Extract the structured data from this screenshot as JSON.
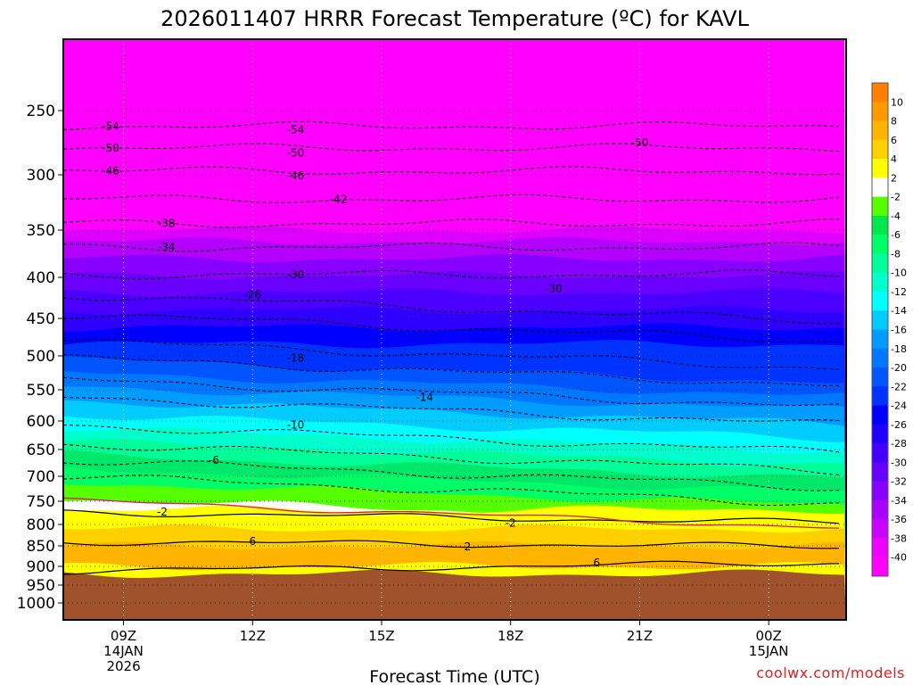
{
  "chart_data": {
    "type": "time-height contour",
    "title": "2026011407 HRRR Forecast Temperature (ºC) for KAVL",
    "xlabel": "Forecast Time (UTC)",
    "ylabel": "",
    "credit": "coolwx.com/models",
    "x_ticks": [
      {
        "hour": 9,
        "lines": [
          "09Z",
          "14JAN",
          "2026"
        ]
      },
      {
        "hour": 12,
        "lines": [
          "12Z"
        ]
      },
      {
        "hour": 15,
        "lines": [
          "15Z"
        ]
      },
      {
        "hour": 18,
        "lines": [
          "18Z"
        ]
      },
      {
        "hour": 21,
        "lines": [
          "21Z"
        ]
      },
      {
        "hour": 24,
        "lines": [
          "00Z",
          "15JAN"
        ]
      }
    ],
    "xlim_hours": [
      7.6,
      25.8
    ],
    "y_ticks": [
      "250",
      "300",
      "350",
      "400",
      "450",
      "500",
      "550",
      "600",
      "650",
      "700",
      "750",
      "800",
      "850",
      "900",
      "950",
      "1000"
    ],
    "ylim_hpa": [
      200,
      1013
    ],
    "colorbar_ticks": [
      "10",
      "8",
      "6",
      "4",
      "2",
      "-2",
      "-4",
      "-6",
      "-8",
      "-10",
      "-12",
      "-14",
      "-16",
      "-18",
      "-20",
      "-22",
      "-24",
      "-26",
      "-28",
      "-30",
      "-32",
      "-34",
      "-36",
      "-38",
      "-40"
    ],
    "colorbar_colors": [
      "#ff8000",
      "#ff9a00",
      "#ffb400",
      "#ffcf00",
      "#ffff00",
      "#ffffff",
      "#55ff00",
      "#00e84a",
      "#00ff66",
      "#00ff99",
      "#00ffcc",
      "#00ffff",
      "#00ccff",
      "#009cff",
      "#0077ff",
      "#0055ff",
      "#0033ff",
      "#0000ff",
      "#2200ff",
      "#4400ff",
      "#6600ff",
      "#8800ff",
      "#aa00ff",
      "#cc00ff",
      "#ee00ff",
      "#ff00ff"
    ],
    "contour_labels": [
      {
        "text": "-54",
        "hour": 8.7,
        "hpa": 262
      },
      {
        "text": "-50",
        "hour": 8.7,
        "hpa": 279
      },
      {
        "text": "-46",
        "hour": 8.7,
        "hpa": 297
      },
      {
        "text": "-54",
        "hour": 13.0,
        "hpa": 265
      },
      {
        "text": "-50",
        "hour": 13.0,
        "hpa": 283
      },
      {
        "text": "-46",
        "hour": 13.0,
        "hpa": 301
      },
      {
        "text": "-42",
        "hour": 14.0,
        "hpa": 322
      },
      {
        "text": "-50",
        "hour": 21.0,
        "hpa": 275
      },
      {
        "text": "-38",
        "hour": 10.0,
        "hpa": 344
      },
      {
        "text": "-34",
        "hour": 10.0,
        "hpa": 368
      },
      {
        "text": "-30",
        "hour": 13.0,
        "hpa": 397
      },
      {
        "text": "-30",
        "hour": 19.0,
        "hpa": 414
      },
      {
        "text": "-26",
        "hour": 12.0,
        "hpa": 421
      },
      {
        "text": "-18",
        "hour": 13.0,
        "hpa": 503
      },
      {
        "text": "-14",
        "hour": 16.0,
        "hpa": 562
      },
      {
        "text": "-10",
        "hour": 13.0,
        "hpa": 607
      },
      {
        "text": "-6",
        "hour": 11.1,
        "hpa": 670
      },
      {
        "text": "-2",
        "hour": 9.9,
        "hpa": 773
      },
      {
        "text": "-2",
        "hour": 18.0,
        "hpa": 797
      },
      {
        "text": "6",
        "hour": 12.0,
        "hpa": 840
      },
      {
        "text": "2",
        "hour": 17.0,
        "hpa": 852
      },
      {
        "text": "6",
        "hour": 20.0,
        "hpa": 891
      }
    ],
    "temperature_bands": [
      {
        "color": "#ff00ff",
        "hpa": [
          200,
          350
        ]
      },
      {
        "color": "#dd00ff",
        "hpa": [
          350,
          362
        ]
      },
      {
        "color": "#b300ff",
        "hpa": [
          362,
          380
        ]
      },
      {
        "color": "#8800ff",
        "hpa": [
          380,
          398
        ]
      },
      {
        "color": "#6a00ff",
        "hpa": [
          398,
          418
        ]
      },
      {
        "color": "#4b00ff",
        "hpa": [
          418,
          440
        ]
      },
      {
        "color": "#2d00ff",
        "hpa": [
          440,
          462
        ]
      },
      {
        "color": "#0000ff",
        "hpa": [
          462,
          484
        ]
      },
      {
        "color": "#0033ff",
        "hpa": [
          484,
          505
        ]
      },
      {
        "color": "#0055ff",
        "hpa": [
          505,
          525
        ]
      },
      {
        "color": "#0077ff",
        "hpa": [
          525,
          545
        ]
      },
      {
        "color": "#009cff",
        "hpa": [
          545,
          567
        ]
      },
      {
        "color": "#00ccff",
        "hpa": [
          567,
          590
        ]
      },
      {
        "color": "#00ffff",
        "hpa": [
          590,
          612
        ]
      },
      {
        "color": "#00ffcc",
        "hpa": [
          612,
          636
        ]
      },
      {
        "color": "#00ff99",
        "hpa": [
          636,
          660
        ]
      },
      {
        "color": "#00e86a",
        "hpa": [
          660,
          686
        ]
      },
      {
        "color": "#00ff66",
        "hpa": [
          686,
          712
        ]
      },
      {
        "color": "#55ff00",
        "hpa": [
          712,
          745
        ]
      },
      {
        "color": "#ffffff",
        "hpa": [
          745,
          768
        ]
      },
      {
        "color": "#ffff00",
        "hpa": [
          768,
          810
        ]
      },
      {
        "color": "#ffcf00",
        "hpa": [
          810,
          850
        ]
      },
      {
        "color": "#ffb400",
        "hpa": [
          850,
          900
        ]
      },
      {
        "color": "#ffff00",
        "hpa": [
          900,
          920
        ]
      },
      {
        "color": "#a0522d",
        "hpa": [
          920,
          1013
        ]
      }
    ]
  }
}
